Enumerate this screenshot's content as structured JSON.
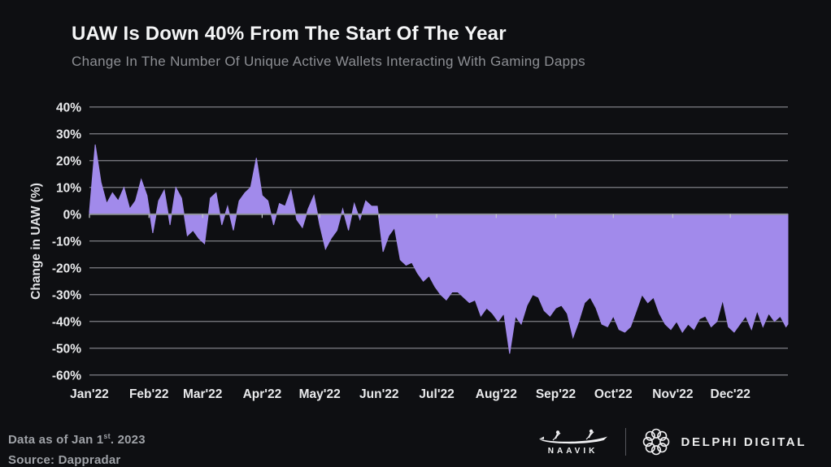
{
  "header": {
    "title": "UAW Is Down 40% From The Start Of The Year",
    "subtitle": "Change In The Number Of Unique Active Wallets Interacting With Gaming Dapps"
  },
  "chart_data": {
    "type": "area",
    "title": "UAW Is Down 40% From The Start Of The Year",
    "subtitle": "Change In The Number Of Unique Active Wallets Interacting With Gaming Dapps",
    "xlabel": "",
    "ylabel": "Change in UAW (%)",
    "ylim": [
      -60,
      40
    ],
    "grid": "horizontal",
    "legend": "none",
    "baseline_value": 0,
    "fill_color": "#a18aeb",
    "y_tick_values": [
      40,
      30,
      20,
      10,
      0,
      -10,
      -20,
      -30,
      -40,
      -50,
      -60
    ],
    "y_tick_labels": [
      "40%",
      "30%",
      "20%",
      "10%",
      "0%",
      "-10%",
      "-20%",
      "-30%",
      "-40%",
      "-50%",
      "-60%"
    ],
    "x_tick_labels": [
      "Jan'22",
      "Feb'22",
      "Mar'22",
      "Apr'22",
      "May'22",
      "Jun'22",
      "Jul'22",
      "Aug'22",
      "Sep'22",
      "Oct'22",
      "Nov'22",
      "Dec'22"
    ],
    "month_start_days": [
      0,
      31,
      59,
      90,
      120,
      151,
      181,
      212,
      243,
      273,
      304,
      334
    ],
    "days_in_year": 365,
    "series": [
      {
        "name": "Change in UAW (%)",
        "unit": "percent",
        "days": [
          0,
          3,
          6,
          9,
          12,
          15,
          18,
          21,
          24,
          27,
          30,
          33,
          36,
          39,
          42,
          45,
          48,
          51,
          54,
          57,
          60,
          63,
          66,
          69,
          72,
          75,
          78,
          81,
          84,
          87,
          90,
          93,
          96,
          99,
          102,
          105,
          108,
          111,
          114,
          117,
          120,
          123,
          126,
          129,
          132,
          135,
          138,
          141,
          144,
          147,
          150,
          153,
          156,
          159,
          162,
          165,
          168,
          171,
          174,
          177,
          180,
          183,
          186,
          189,
          192,
          195,
          198,
          201,
          204,
          207,
          210,
          213,
          216,
          219,
          222,
          225,
          228,
          231,
          234,
          237,
          240,
          243,
          246,
          249,
          252,
          255,
          258,
          261,
          264,
          267,
          270,
          273,
          276,
          279,
          282,
          285,
          288,
          291,
          294,
          297,
          300,
          303,
          306,
          309,
          312,
          315,
          318,
          321,
          324,
          327,
          330,
          333,
          336,
          339,
          342,
          345,
          348,
          351,
          354,
          357,
          360,
          363,
          364
        ],
        "values": [
          1,
          26,
          12,
          4,
          8,
          5,
          10,
          2,
          5,
          13,
          7,
          -7,
          5,
          9,
          -4,
          10,
          6,
          -8,
          -6,
          -9,
          -11,
          6,
          8,
          -4,
          3,
          -6,
          5,
          8,
          10,
          21,
          7,
          5,
          -4,
          4,
          3,
          9,
          -2,
          -5,
          2,
          7,
          -4,
          -13,
          -9,
          -6,
          2,
          -6,
          4,
          -2,
          5,
          3,
          3,
          -14,
          -8,
          -5,
          -17,
          -19,
          -18,
          -22,
          -25,
          -23,
          -27,
          -30,
          -32,
          -29,
          -29,
          -31,
          -33,
          -32,
          -38,
          -35,
          -37,
          -40,
          -37,
          -52,
          -38,
          -41,
          -34,
          -30,
          -31,
          -36,
          -38,
          -35,
          -34,
          -37,
          -46,
          -40,
          -33,
          -31,
          -35,
          -41,
          -42,
          -38,
          -43,
          -44,
          -42,
          -36,
          -30,
          -33,
          -31,
          -37,
          -41,
          -43,
          -40,
          -44,
          -41,
          -43,
          -39,
          -38,
          -42,
          -40,
          -32,
          -42,
          -44,
          -41,
          -38,
          -43,
          -36,
          -42,
          -37,
          -40,
          -38,
          -42,
          -41
        ]
      }
    ],
    "annotations": []
  },
  "footer": {
    "data_as_of_prefix": "Data as of Jan 1",
    "data_as_of_sup": "st",
    "data_as_of_suffix": ". 2023",
    "source": "Source: Dappradar",
    "naavik_label": "NAAVIK",
    "delphi_label": "DELPHI DIGITAL"
  },
  "colors": {
    "background": "#0e0f12",
    "area_fill": "#a18aeb",
    "gridline": "#94969c",
    "zero_line": "#8f939a",
    "month_tick": "#c6c9ce",
    "tick_label": "#e9eaec",
    "title": "#f4f5f6",
    "subtitle": "#8d8f94",
    "footer_text": "#9fa2a7",
    "logo": "#f0f0f2"
  }
}
